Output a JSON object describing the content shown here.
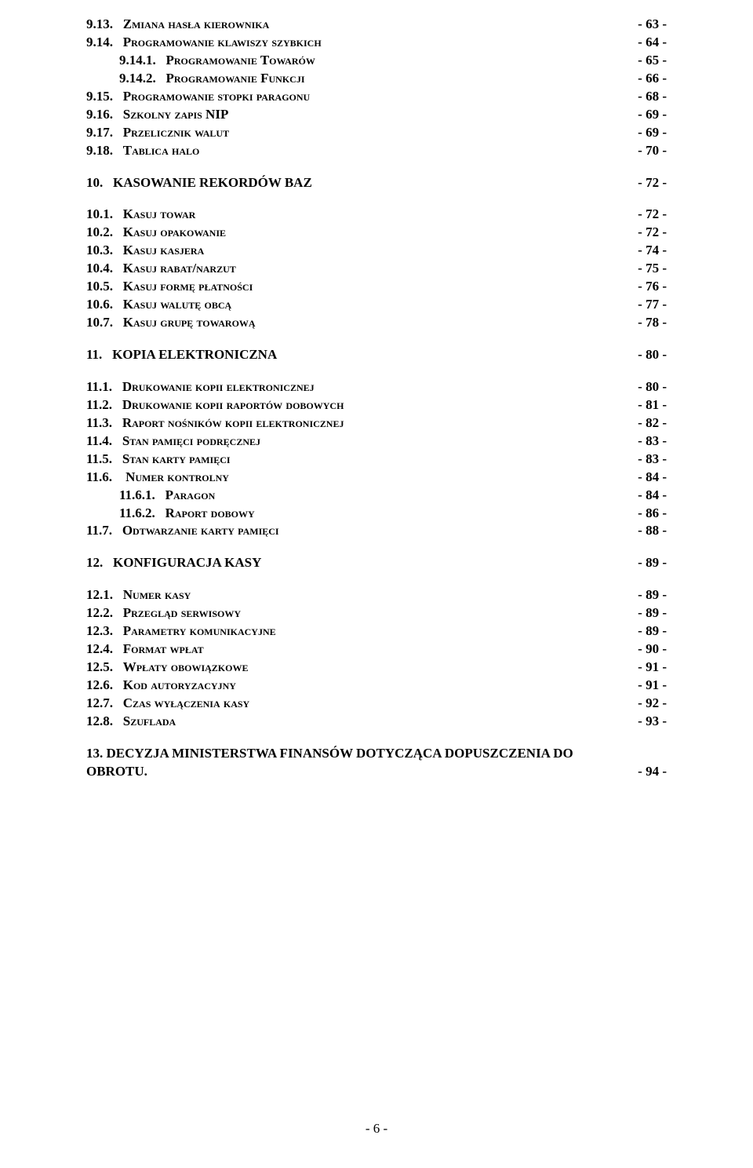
{
  "lines": [
    {
      "num": "9.13.",
      "title": "Zmiana hasła kierownika",
      "page": "- 63 -",
      "style": "sc"
    },
    {
      "num": "9.14.",
      "title": "Programowanie klawiszy szybkich",
      "page": "- 64 -",
      "style": "sc"
    },
    {
      "num": "9.14.1.",
      "title": "Programowanie Towarów",
      "page": "- 65 -",
      "style": "sc",
      "indent": 1
    },
    {
      "num": "9.14.2.",
      "title": "Programowanie Funkcji",
      "page": "- 66 -",
      "style": "sc",
      "indent": 1
    },
    {
      "num": "9.15.",
      "title": "Programowanie stopki paragonu",
      "page": "- 68 -",
      "style": "sc"
    },
    {
      "num": "9.16.",
      "title": "Szkolny zapis NIP",
      "page": "- 69 -",
      "style": "sc"
    },
    {
      "num": "9.17.",
      "title": "Przelicznik walut",
      "page": "- 69 -",
      "style": "sc"
    },
    {
      "num": "9.18.",
      "title": "Tablica halo",
      "page": "- 70 -",
      "style": "sc"
    },
    {
      "spacer": true
    },
    {
      "num": "10.",
      "title": "KASOWANIE REKORDÓW BAZ",
      "page": "- 72 -",
      "style": "section"
    },
    {
      "spacer": true
    },
    {
      "num": "10.1.",
      "title": "Kasuj towar",
      "page": "- 72 -",
      "style": "sc"
    },
    {
      "num": "10.2.",
      "title": "Kasuj opakowanie",
      "page": "- 72 -",
      "style": "sc"
    },
    {
      "num": "10.3.",
      "title": "Kasuj kasjera",
      "page": "- 74 -",
      "style": "sc"
    },
    {
      "num": "10.4.",
      "title": "Kasuj rabat/narzut",
      "page": "- 75 -",
      "style": "sc"
    },
    {
      "num": "10.5.",
      "title": "Kasuj formę płatności",
      "page": "- 76 -",
      "style": "sc"
    },
    {
      "num": "10.6.",
      "title": "Kasuj walutę obcą",
      "page": "- 77 -",
      "style": "sc"
    },
    {
      "num": "10.7.",
      "title": "Kasuj grupę towarową",
      "page": "- 78 -",
      "style": "sc"
    },
    {
      "spacer": true
    },
    {
      "num": "11.",
      "title": "KOPIA ELEKTRONICZNA",
      "page": "- 80 -",
      "style": "section"
    },
    {
      "spacer": true
    },
    {
      "num": "11.1.",
      "title": "Drukowanie kopii elektronicznej",
      "page": "- 80 -",
      "style": "sc"
    },
    {
      "num": "11.2.",
      "title": "Drukowanie kopii raportów dobowych",
      "page": "- 81 -",
      "style": "sc"
    },
    {
      "num": "11.3.",
      "title": "Raport nośników kopii elektronicznej",
      "page": "- 82 -",
      "style": "sc"
    },
    {
      "num": "11.4.",
      "title": "Stan pamięci podręcznej",
      "page": "- 83 -",
      "style": "sc"
    },
    {
      "num": "11.5.",
      "title": "Stan karty pamięci",
      "page": "- 83 -",
      "style": "sc"
    },
    {
      "num": "11.6.",
      "title": " Numer kontrolny",
      "page": "- 84 -",
      "style": "sc"
    },
    {
      "num": "11.6.1.",
      "title": "Paragon",
      "page": "- 84 -",
      "style": "sc",
      "indent": 1
    },
    {
      "num": "11.6.2.",
      "title": "Raport dobowy",
      "page": "- 86 -",
      "style": "sc",
      "indent": 1
    },
    {
      "num": "11.7.",
      "title": "Odtwarzanie karty pamięci",
      "page": "- 88 -",
      "style": "sc"
    },
    {
      "spacer": true
    },
    {
      "num": "12.",
      "title": "KONFIGURACJA KASY",
      "page": "- 89 -",
      "style": "section"
    },
    {
      "spacer": true
    },
    {
      "num": "12.1.",
      "title": "Numer kasy",
      "page": "- 89 -",
      "style": "sc"
    },
    {
      "num": "12.2.",
      "title": "Przegląd serwisowy",
      "page": "- 89 -",
      "style": "sc"
    },
    {
      "num": "12.3.",
      "title": "Parametry komunikacyjne",
      "page": "- 89 -",
      "style": "sc"
    },
    {
      "num": "12.4.",
      "title": "Format wpłat",
      "page": "- 90 -",
      "style": "sc"
    },
    {
      "num": "12.5.",
      "title": "Wpłaty obowiązkowe",
      "page": "- 91 -",
      "style": "sc"
    },
    {
      "num": "12.6.",
      "title": "Kod autoryzacyjny",
      "page": "- 91 -",
      "style": "sc"
    },
    {
      "num": "12.7.",
      "title": "Czas wyłączenia kasy",
      "page": "- 92 -",
      "style": "sc"
    },
    {
      "num": "12.8.",
      "title": "Szuflada",
      "page": "- 93 -",
      "style": "sc"
    },
    {
      "spacer": true
    }
  ],
  "lastSection": {
    "line1_left": "13",
    "line1_right": ". DECYZJA MINISTERSTWA FINANSÓW DOTYCZĄCA DOPUSZCZENIA DO",
    "line2_left": "OBROTU.",
    "line2_right": "- 94 -"
  },
  "footer": "- 6 -"
}
